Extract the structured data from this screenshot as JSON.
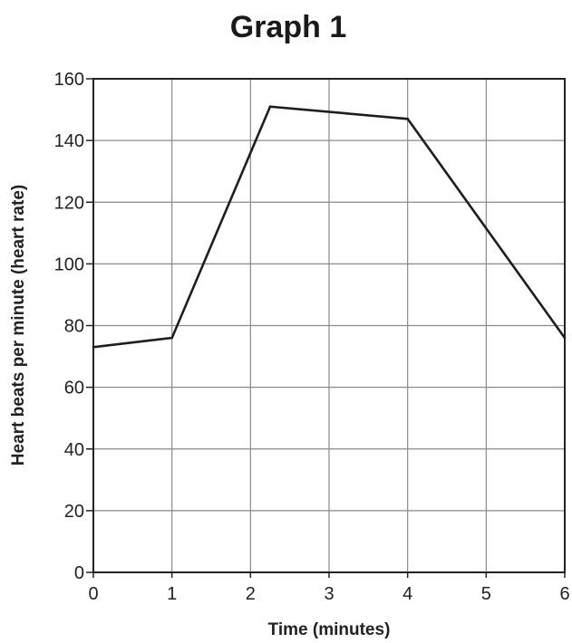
{
  "chart_data": {
    "type": "line",
    "title": "Graph 1",
    "xlabel": "Time (minutes)",
    "ylabel": "Heart beats per minute (heart rate)",
    "xlim": [
      0,
      6
    ],
    "ylim": [
      0,
      160
    ],
    "x_ticks": [
      "0",
      "1",
      "2",
      "3",
      "4",
      "5",
      "6"
    ],
    "y_ticks": [
      "0",
      "20",
      "40",
      "60",
      "80",
      "100",
      "120",
      "140",
      "160"
    ],
    "grid": true,
    "series": [
      {
        "x": [
          0,
          1,
          2.25,
          4,
          6
        ],
        "y": [
          73,
          76,
          151,
          147,
          76
        ]
      }
    ]
  }
}
